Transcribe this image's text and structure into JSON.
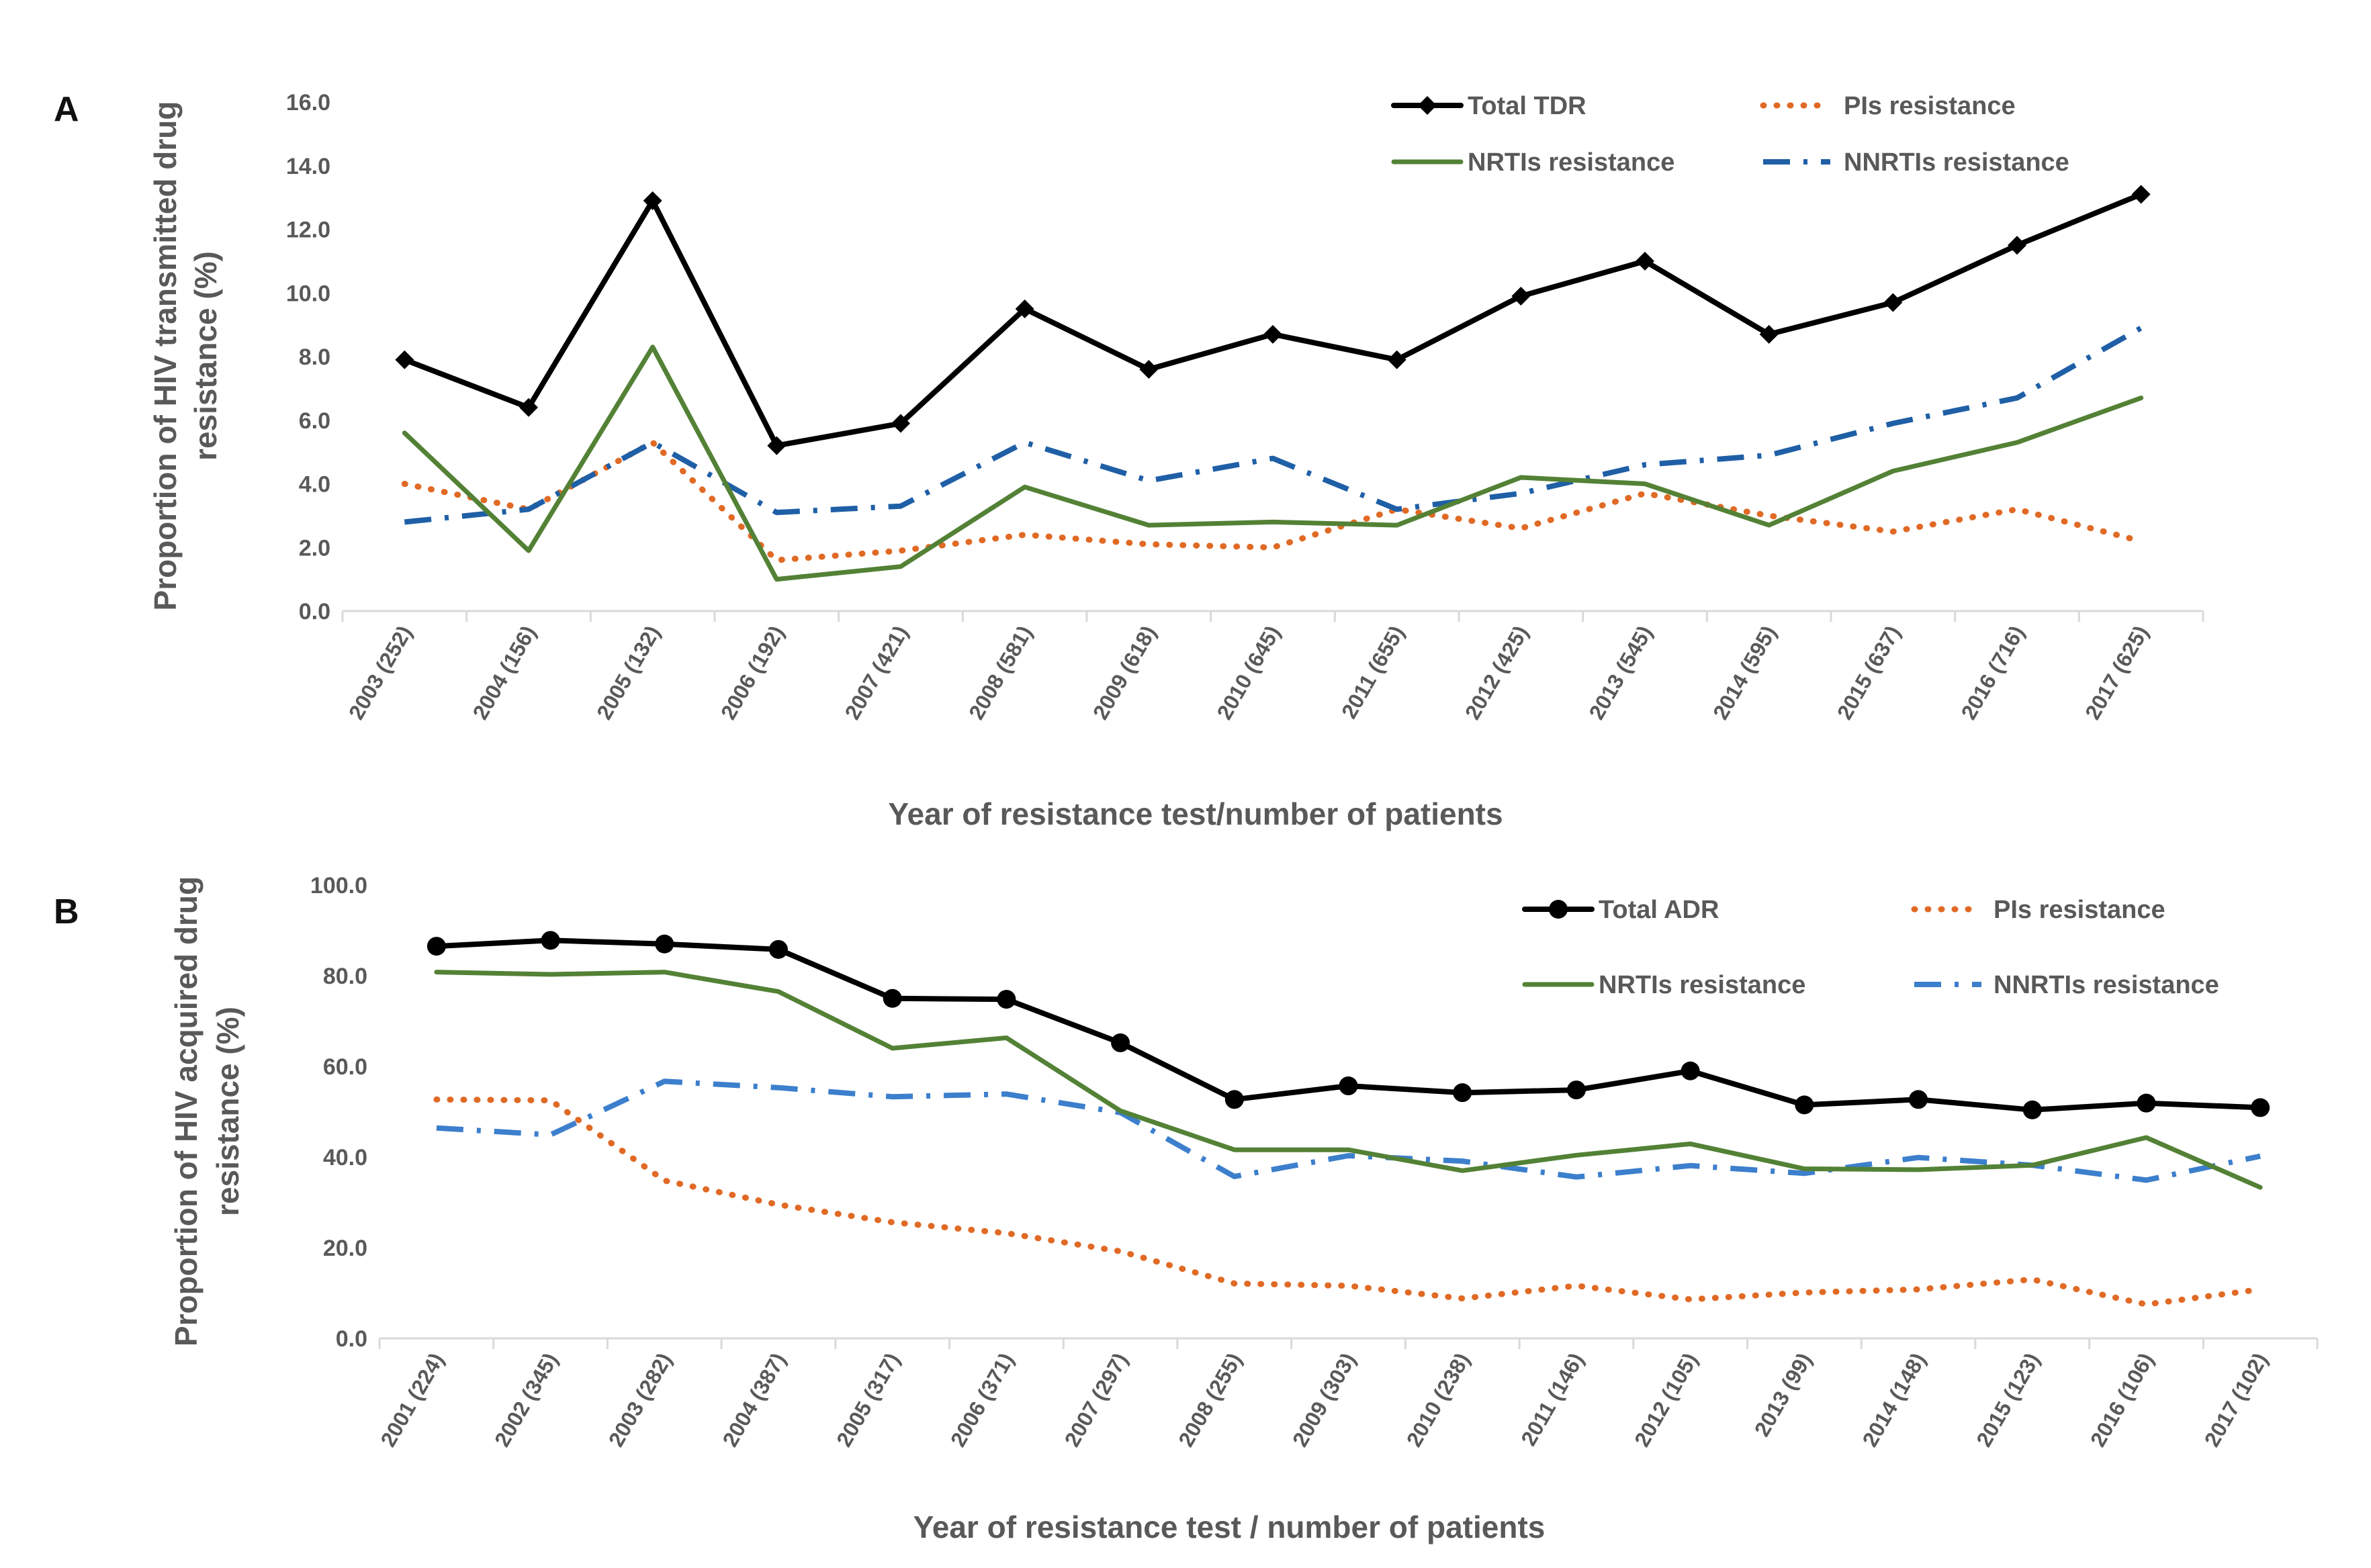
{
  "colors": {
    "total": "#000000",
    "pis": "#E06A25",
    "nrtis": "#538135",
    "nnrtis_a": "#1F5FA6",
    "nnrtis_b": "#3C7FCC",
    "axis": "#D9D9D9",
    "text": "#595959"
  },
  "chart_data": [
    {
      "panel": "A",
      "type": "line",
      "ylabel_lines": [
        "Proportion of HIV transmitted drug",
        "resistance (%)"
      ],
      "xlabel": "Year of resistance test/number of patients",
      "ylim": [
        0,
        16
      ],
      "yticks": [
        "0.0",
        "2.0",
        "4.0",
        "6.0",
        "8.0",
        "10.0",
        "12.0",
        "14.0",
        "16.0"
      ],
      "legend_position": "top-right",
      "grid": false,
      "categories": [
        "2003 (252)",
        "2004 (156)",
        "2005 (132)",
        "2006 (192)",
        "2007 (421)",
        "2008 (581)",
        "2009 (618)",
        "2010 (645)",
        "2011 (655)",
        "2012 (425)",
        "2013 (545)",
        "2014 (595)",
        "2015 (637)",
        "2016 (716)",
        "2017 (625)"
      ],
      "series": [
        {
          "key": "total",
          "name": "Total TDR",
          "style": "solid-diamond",
          "values": [
            7.9,
            6.4,
            12.9,
            5.2,
            5.9,
            9.5,
            7.6,
            8.7,
            7.9,
            9.9,
            11.0,
            8.7,
            9.7,
            11.5,
            13.1
          ]
        },
        {
          "key": "pis",
          "name": "PIs resistance",
          "style": "dotted",
          "values": [
            4.0,
            3.2,
            5.3,
            1.6,
            1.9,
            2.4,
            2.1,
            2.0,
            3.2,
            2.6,
            3.7,
            3.0,
            2.5,
            3.2,
            2.2
          ]
        },
        {
          "key": "nrtis",
          "name": "NRTIs resistance",
          "style": "solid",
          "values": [
            5.6,
            1.9,
            8.3,
            1.0,
            1.4,
            3.9,
            2.7,
            2.8,
            2.7,
            4.2,
            4.0,
            2.7,
            4.4,
            5.3,
            6.7
          ]
        },
        {
          "key": "nnrtis_a",
          "name": "NNRTIs resistance",
          "style": "dashdot",
          "values": [
            2.8,
            3.2,
            5.3,
            3.1,
            3.3,
            5.3,
            4.1,
            4.8,
            3.2,
            3.7,
            4.6,
            4.9,
            5.9,
            6.7,
            8.9
          ]
        }
      ]
    },
    {
      "panel": "B",
      "type": "line",
      "ylabel_lines": [
        "Proportion of HIV acquired drug",
        "resistance (%)"
      ],
      "xlabel": "Year of resistance test / number of patients",
      "ylim": [
        0,
        100
      ],
      "yticks": [
        "0.0",
        "20.0",
        "40.0",
        "60.0",
        "80.0",
        "100.0"
      ],
      "legend_position": "top-right",
      "grid": false,
      "categories": [
        "2001 (224)",
        "2002 (345)",
        "2003 (282)",
        "2004 (387)",
        "2005 (317)",
        "2006 (371)",
        "2007 (297)",
        "2008 (255)",
        "2009 (303)",
        "2010 (238)",
        "2011 (146)",
        "2012 (105)",
        "2013 (99)",
        "2014 (148)",
        "2015 (123)",
        "2016 (106)",
        "2017 (102)"
      ],
      "series": [
        {
          "key": "total",
          "name": "Total ADR",
          "style": "solid-circle",
          "values": [
            86.5,
            87.8,
            87.0,
            85.8,
            75.0,
            74.8,
            65.2,
            52.7,
            55.7,
            54.2,
            54.8,
            59.0,
            51.5,
            52.7,
            50.4,
            51.9,
            50.9
          ]
        },
        {
          "key": "pis",
          "name": "PIs resistance",
          "style": "dotted",
          "values": [
            52.7,
            52.5,
            34.8,
            29.5,
            25.6,
            23.2,
            19.2,
            12.1,
            11.6,
            8.8,
            11.6,
            8.6,
            10.1,
            10.8,
            13.0,
            7.5,
            10.8
          ]
        },
        {
          "key": "nrtis",
          "name": "NRTIs resistance",
          "style": "solid",
          "values": [
            80.8,
            80.3,
            80.8,
            76.5,
            64.0,
            66.3,
            50.2,
            41.6,
            41.6,
            37.0,
            40.4,
            42.9,
            37.4,
            37.2,
            38.2,
            44.3,
            33.3
          ]
        },
        {
          "key": "nnrtis_b",
          "name": "NNRTIs resistance",
          "style": "dashdot",
          "values": [
            46.4,
            44.9,
            56.7,
            55.3,
            53.3,
            53.9,
            49.8,
            35.7,
            40.3,
            39.1,
            35.6,
            38.1,
            36.4,
            39.9,
            38.2,
            34.9,
            40.2
          ]
        }
      ]
    }
  ]
}
